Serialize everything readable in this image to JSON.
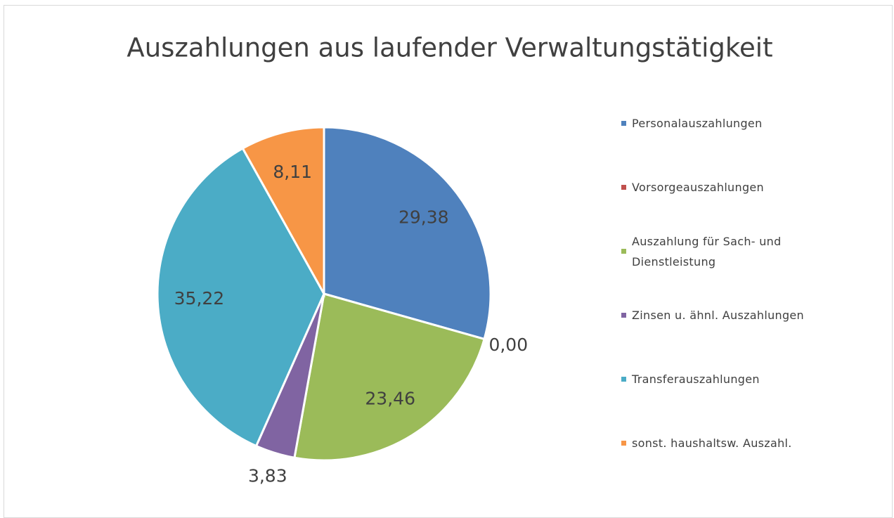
{
  "chart_data": {
    "type": "pie",
    "title": "Auszahlungen aus laufender Verwaltungstätigkeit",
    "categories": [
      "Personalauszahlungen",
      "Vorsorgeauszahlungen",
      "Auszahlung für Sach- und Dienstleistung",
      "Zinsen u. ähnl. Auszahlungen",
      "Transferauszahlungen",
      "sonst. haushaltsw. Auszahl."
    ],
    "values": [
      29.38,
      0.0,
      23.46,
      3.83,
      35.22,
      8.11
    ],
    "value_labels": [
      "29,38",
      "0,00",
      "23,46",
      "3,83",
      "35,22",
      "8,11"
    ],
    "colors": [
      "#4f81bd",
      "#c0504d",
      "#9bbb59",
      "#8064a2",
      "#4bacc6",
      "#f79646"
    ],
    "legend": "right"
  }
}
